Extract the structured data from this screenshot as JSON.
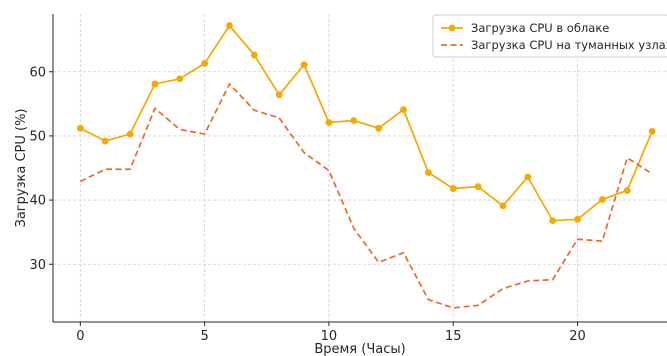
{
  "chart_data": {
    "type": "line",
    "xlabel": "Время (Часы)",
    "ylabel": "Загрузка CPU (%)",
    "xlim": [
      -1.1,
      23.6
    ],
    "ylim": [
      21.0,
      69.0
    ],
    "xticks": [
      0,
      5,
      10,
      15,
      20
    ],
    "yticks": [
      30,
      40,
      50,
      60
    ],
    "grid": true,
    "legend_position": "top-right",
    "x": [
      0,
      1,
      2,
      3,
      4,
      5,
      6,
      7,
      8,
      9,
      10,
      11,
      12,
      13,
      14,
      15,
      16,
      17,
      18,
      19,
      20,
      21,
      22,
      23
    ],
    "series": [
      {
        "name": "Загрузка CPU в облаке",
        "color": "#f5a800",
        "style": "solid-markers",
        "values": [
          51.2,
          49.2,
          50.3,
          58.1,
          58.9,
          61.3,
          67.2,
          62.6,
          56.4,
          61.1,
          52.1,
          52.4,
          51.2,
          54.1,
          44.3,
          41.8,
          42.1,
          39.1,
          43.6,
          36.8,
          37.0,
          40.1,
          41.5,
          50.7
        ]
      },
      {
        "name": "Загрузка CPU на туманных узлах",
        "color": "#f0672a",
        "style": "dashed",
        "values": [
          42.9,
          44.8,
          44.8,
          54.3,
          51.0,
          50.3,
          58.1,
          54.0,
          52.8,
          47.4,
          44.6,
          35.6,
          30.3,
          31.8,
          24.5,
          23.2,
          23.6,
          26.2,
          27.4,
          27.6,
          33.9,
          33.6,
          46.6,
          44.1
        ]
      }
    ]
  }
}
